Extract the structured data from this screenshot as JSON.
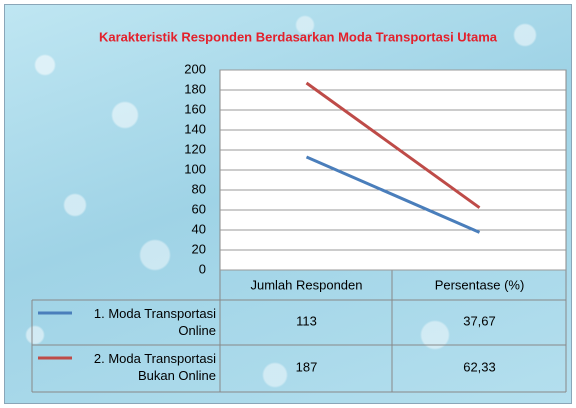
{
  "chart_data": {
    "type": "line",
    "title": "Karakteristik Responden Berdasarkan Moda Transportasi Utama",
    "categories": [
      "Jumlah Responden",
      "Persentase (%)"
    ],
    "series": [
      {
        "name": "1. Moda Transportasi Online",
        "color": "#4a7ebb",
        "values": [
          113,
          37.67
        ],
        "value_labels": [
          "113",
          "37,67"
        ]
      },
      {
        "name": "2. Moda Transportasi Bukan Online",
        "color": "#be4b48",
        "values": [
          187,
          62.33
        ],
        "value_labels": [
          "187",
          "62,33"
        ]
      }
    ],
    "ylim": [
      0,
      200
    ],
    "yticks": [
      0,
      20,
      40,
      60,
      80,
      100,
      120,
      140,
      160,
      180,
      200
    ],
    "grid": true
  }
}
